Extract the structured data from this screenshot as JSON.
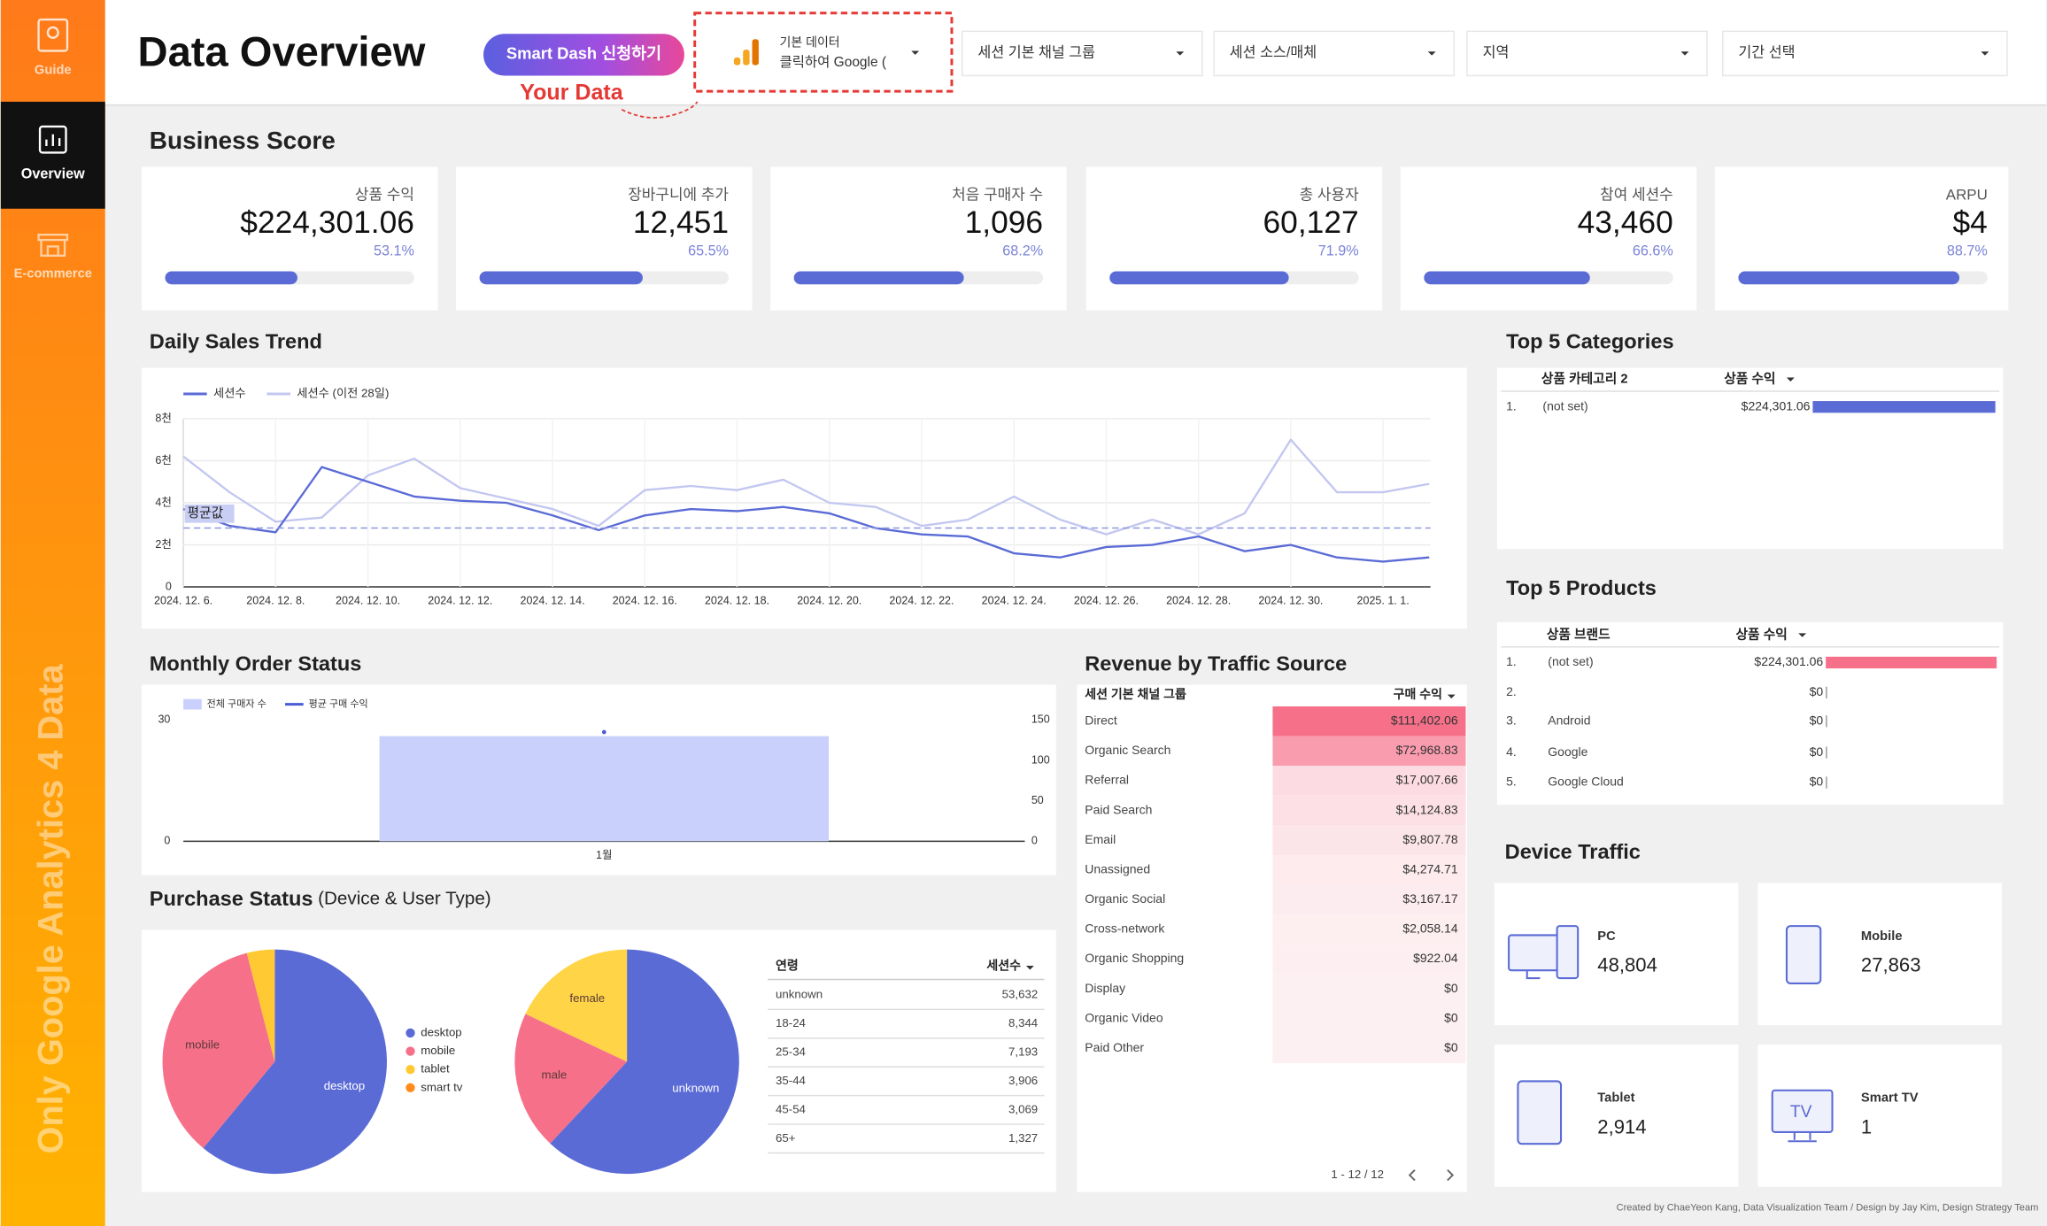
{
  "sidebar": {
    "items": [
      "Guide",
      "Overview",
      "E-commerce"
    ],
    "vertical_text": "Only Google Analytics 4 Data"
  },
  "header": {
    "title": "Data Overview",
    "button": "Smart Dash 신청하기",
    "annotation": "Your Data",
    "data_source": [
      "기본 데이터",
      "클릭하여 Google ("
    ],
    "filters": [
      "세션 기본 채널 그룹",
      "세션 소스/매체",
      "지역",
      "기간 선택"
    ]
  },
  "business_score": {
    "title": "Business Score",
    "cards": [
      {
        "label": "상품 수익",
        "value": "$224,301.06",
        "percent": 53.1,
        "percent_label": "53.1%"
      },
      {
        "label": "장바구니에 추가",
        "value": "12,451",
        "percent": 65.5,
        "percent_label": "65.5%"
      },
      {
        "label": "처음 구매자 수",
        "value": "1,096",
        "percent": 68.2,
        "percent_label": "68.2%"
      },
      {
        "label": "총 사용자",
        "value": "60,127",
        "percent": 71.9,
        "percent_label": "71.9%"
      },
      {
        "label": "참여 세션수",
        "value": "43,460",
        "percent": 66.6,
        "percent_label": "66.6%"
      },
      {
        "label": "ARPU",
        "value": "$4",
        "percent": 88.7,
        "percent_label": "88.7%"
      }
    ]
  },
  "daily_sales_trend": {
    "title": "Daily Sales Trend",
    "type": "line",
    "categories": [
      "2024. 12. 6.",
      null,
      "2024. 12. 8.",
      null,
      "2024. 12. 10.",
      null,
      "2024. 12. 12.",
      null,
      "2024. 12. 14.",
      null,
      "2024. 12. 16.",
      null,
      "2024. 12. 18.",
      null,
      "2024. 12. 20.",
      null,
      "2024. 12. 22.",
      null,
      "2024. 12. 24.",
      null,
      "2024. 12. 26.",
      null,
      "2024. 12. 28.",
      null,
      "2024. 12. 30.",
      null,
      "2025. 1. 1.",
      null
    ],
    "series": [
      {
        "name": "세션수",
        "color": "#5b6bd6",
        "values": [
          3700,
          2900,
          2600,
          5700,
          5000,
          4300,
          4100,
          4000,
          3400,
          2700,
          3400,
          3700,
          3600,
          3800,
          3500,
          2800,
          2500,
          2400,
          1600,
          1400,
          1900,
          2000,
          2400,
          1700,
          2000,
          1400,
          1200,
          1400
        ]
      },
      {
        "name": "세션수 (이전 28일)",
        "color": "#c3c7f0",
        "values": [
          6200,
          4500,
          3100,
          3300,
          5300,
          6100,
          4700,
          4200,
          3700,
          2900,
          4600,
          4800,
          4600,
          5100,
          4000,
          3800,
          2900,
          3200,
          4300,
          3200,
          2500,
          3200,
          2500,
          3500,
          7000,
          4500,
          4500,
          4900
        ]
      }
    ],
    "ylim": [
      0,
      8000
    ],
    "yticks": [
      0,
      {
        "value": 2000,
        "label": "2천"
      },
      {
        "value": 4000,
        "label": "4천"
      },
      {
        "value": 6000,
        "label": "6천"
      },
      {
        "value": 8000,
        "label": "8천"
      }
    ],
    "grid": true,
    "reference": {
      "label": "평균값",
      "value": 2800
    }
  },
  "monthly_order_status": {
    "title": "Monthly Order Status",
    "type": "bar",
    "categories": [
      "1월"
    ],
    "series": [
      {
        "name": "전체 구매자 수",
        "color": "#c9d0fb",
        "values": [
          26
        ]
      },
      {
        "name": "평균 구매 수익",
        "color": "#4a5bd4",
        "values": [
          135
        ],
        "axis": "y2"
      }
    ],
    "ylim": [
      0,
      30
    ],
    "yticks": [
      0,
      30
    ],
    "y2lim": [
      0,
      150
    ],
    "y2ticks": [
      0,
      50,
      100,
      150
    ]
  },
  "purchase_status": {
    "title": "Purchase Status",
    "subtitle": "(Device & User Type)",
    "charts": [
      {
        "type": "pie",
        "categories": [
          "desktop",
          "mobile",
          "tablet",
          "smart tv"
        ],
        "colors": [
          "#5b6bd6",
          "#f7708a",
          "#ffc933",
          "#ff8c1a"
        ],
        "values": [
          61,
          35,
          4,
          0
        ],
        "legend": "right"
      },
      {
        "type": "pie",
        "categories": [
          "unknown",
          "male",
          "female"
        ],
        "colors": [
          "#5b6bd6",
          "#f7708a",
          "#ffd447"
        ],
        "values": [
          62,
          20,
          18
        ]
      }
    ],
    "table": {
      "columns": [
        "연령",
        "세션수"
      ],
      "rows": [
        [
          "unknown",
          "53,632"
        ],
        [
          "18-24",
          "8,344"
        ],
        [
          "25-34",
          "7,193"
        ],
        [
          "35-44",
          "3,906"
        ],
        [
          "45-54",
          "3,069"
        ],
        [
          "65+",
          "1,327"
        ]
      ]
    }
  },
  "revenue_by_traffic_source": {
    "title": "Revenue by Traffic Source",
    "columns": [
      "세션 기본 채널 그룹",
      "구매 수익"
    ],
    "rows": [
      {
        "name": "Direct",
        "value": 111402.06,
        "value_label": "$111,402.06"
      },
      {
        "name": "Organic Search",
        "value": 72968.83,
        "value_label": "$72,968.83"
      },
      {
        "name": "Referral",
        "value": 17007.66,
        "value_label": "$17,007.66"
      },
      {
        "name": "Paid Search",
        "value": 14124.83,
        "value_label": "$14,124.83"
      },
      {
        "name": "Email",
        "value": 9807.78,
        "value_label": "$9,807.78"
      },
      {
        "name": "Unassigned",
        "value": 4274.71,
        "value_label": "$4,274.71"
      },
      {
        "name": "Organic Social",
        "value": 3167.17,
        "value_label": "$3,167.17"
      },
      {
        "name": "Cross-network",
        "value": 2058.14,
        "value_label": "$2,058.14"
      },
      {
        "name": "Organic Shopping",
        "value": 922.04,
        "value_label": "$922.04"
      },
      {
        "name": "Display",
        "value": 0,
        "value_label": "$0"
      },
      {
        "name": "Organic Video",
        "value": 0,
        "value_label": "$0"
      },
      {
        "name": "Paid Other",
        "value": 0,
        "value_label": "$0"
      }
    ],
    "pagination": "1 - 12 / 12"
  },
  "top_categories": {
    "title": "Top 5 Categories",
    "columns": [
      "상품 카테고리 2",
      "상품 수익"
    ],
    "rows": [
      {
        "rank": "1.",
        "name": "(not set)",
        "value": 224301.06,
        "value_label": "$224,301.06"
      }
    ]
  },
  "top_products": {
    "title": "Top 5 Products",
    "columns": [
      "상품 브랜드",
      "상품 수익"
    ],
    "rows": [
      {
        "rank": "1.",
        "name": "(not set)",
        "value": 224301.06,
        "value_label": "$224,301.06"
      },
      {
        "rank": "2.",
        "value": 0,
        "value_label": "$0"
      },
      {
        "rank": "3.",
        "name": "Android",
        "value": 0,
        "value_label": "$0"
      },
      {
        "rank": "4.",
        "name": "Google",
        "value": 0,
        "value_label": "$0"
      },
      {
        "rank": "5.",
        "name": "Google Cloud",
        "value": 0,
        "value_label": "$0"
      }
    ]
  },
  "device_traffic": {
    "title": "Device Traffic",
    "items": [
      {
        "name": "PC",
        "value": "48,804"
      },
      {
        "name": "Mobile",
        "value": "27,863"
      },
      {
        "name": "Tablet",
        "value": "2,914"
      },
      {
        "name": "Smart TV",
        "value": "1"
      }
    ]
  },
  "footer": "Created by ChaeYeon Kang, Data Visualization Team / Design by Jay Kim, Design Strategy Team"
}
